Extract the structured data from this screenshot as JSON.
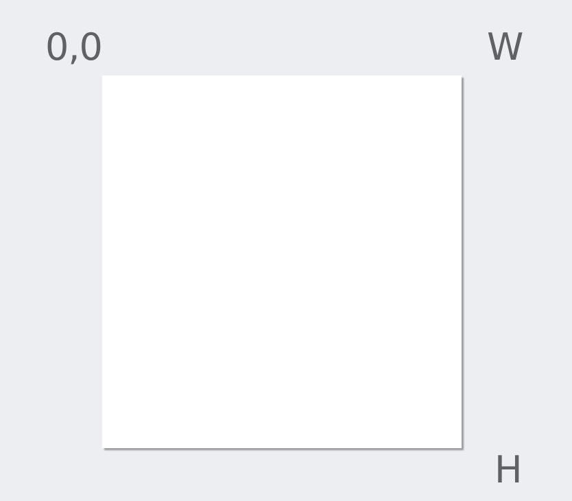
{
  "labels": {
    "origin": "0,0",
    "width": "W",
    "height": "H"
  },
  "colors": {
    "background": "#edeef2",
    "canvas": "#ffffff",
    "text": "#5f6167"
  }
}
